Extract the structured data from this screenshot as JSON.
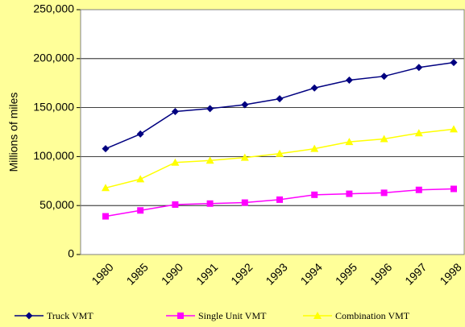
{
  "chart_data": {
    "type": "line",
    "y_label": "Millions of miles",
    "categories": [
      "1980",
      "1985",
      "1990",
      "1991",
      "1992",
      "1993",
      "1994",
      "1995",
      "1996",
      "1997",
      "1998"
    ],
    "series": [
      {
        "name": "Truck VMT",
        "color": "#000080",
        "marker": "diamond",
        "values": [
          108000,
          123000,
          146000,
          149000,
          153000,
          159000,
          170000,
          178000,
          182000,
          191000,
          196000
        ]
      },
      {
        "name": "Single Unit VMT",
        "color": "#ff00ff",
        "marker": "square",
        "values": [
          39000,
          45000,
          51000,
          52000,
          53000,
          56000,
          61000,
          62000,
          63000,
          66000,
          67000
        ]
      },
      {
        "name": "Combination VMT",
        "color": "#ffff00",
        "marker": "triangle",
        "values": [
          68000,
          77000,
          94000,
          96000,
          99000,
          103000,
          108000,
          115000,
          118000,
          124000,
          128000
        ]
      }
    ],
    "ylim": [
      0,
      250000
    ],
    "yticks": [
      0,
      {
        "value": 50000,
        "label": "50,000"
      },
      {
        "value": 100000,
        "label": "100,000"
      },
      {
        "value": 150000,
        "label": "150,000"
      },
      {
        "value": 200000,
        "label": "200,000"
      },
      {
        "value": 250000,
        "label": "250,000"
      }
    ],
    "grid": true,
    "legend": "bottom"
  }
}
